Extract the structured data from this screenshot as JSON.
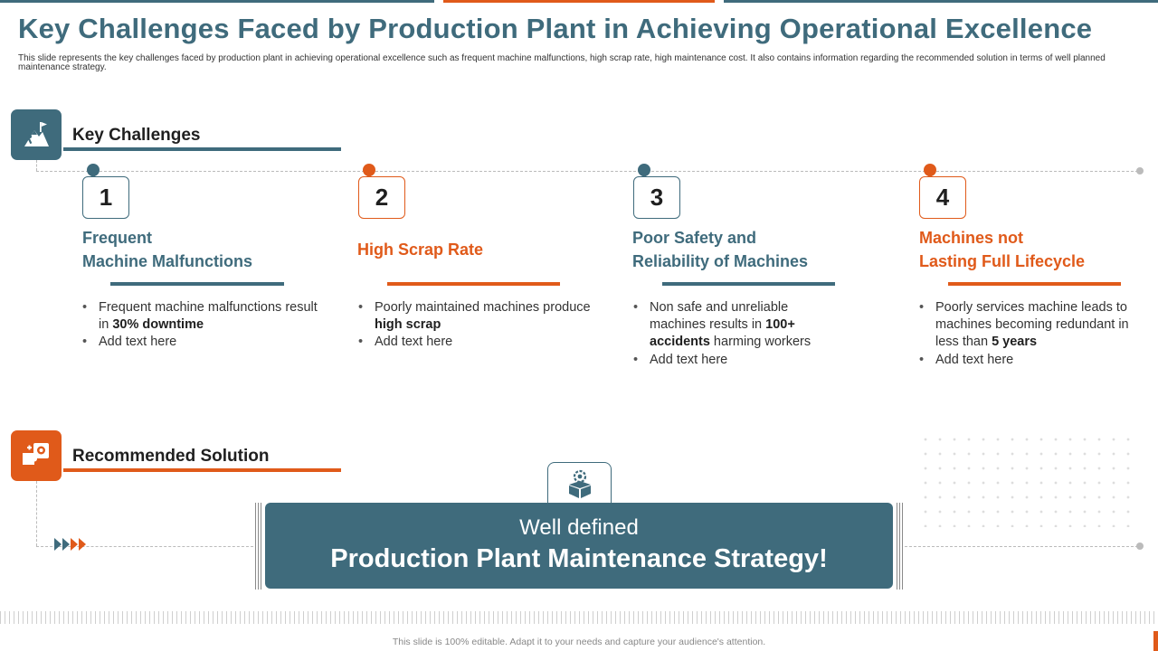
{
  "colors": {
    "teal": "#3f6b7c",
    "orange": "#e05a1a"
  },
  "title": "Key Challenges Faced by Production Plant in Achieving Operational Excellence",
  "subtitle": "This slide represents the key challenges faced by production plant in achieving operational excellence such as frequent machine malfunctions, high scrap rate, high maintenance cost. It also contains information regarding the recommended solution in terms of well planned maintenance strategy.",
  "key_challenges": {
    "heading": "Key Challenges",
    "icon": "mountain-climber-icon",
    "items": [
      {
        "number": "1",
        "title_line1": "Frequent",
        "title_line2": "Machine Malfunctions",
        "bullet1_pre": "Frequent machine malfunctions result in ",
        "bullet1_bold": "30% downtime",
        "bullet1_post": "",
        "bullet2": "Add text here"
      },
      {
        "number": "2",
        "title_line1": "High Scrap Rate",
        "title_line2": "",
        "bullet1_pre": "Poorly maintained machines produce ",
        "bullet1_bold": "high scrap",
        "bullet1_post": "",
        "bullet2": "Add text here"
      },
      {
        "number": "3",
        "title_line1": "Poor Safety and",
        "title_line2": "Reliability of Machines",
        "bullet1_pre": "Non safe and unreliable machines results in ",
        "bullet1_bold": "100+ accidents",
        "bullet1_post": " harming workers",
        "bullet2": "Add text here"
      },
      {
        "number": "4",
        "title_line1": "Machines not",
        "title_line2": "Lasting Full Lifecycle",
        "bullet1_pre": "Poorly services machine leads to machines becoming redundant in less than ",
        "bullet1_bold": "5 years",
        "bullet1_post": "",
        "bullet2": "Add text here"
      }
    ]
  },
  "recommended_solution": {
    "heading": "Recommended Solution",
    "icon": "puzzle-idea-icon",
    "box_icon": "gear-box-icon",
    "line1": "Well defined",
    "line2": "Production Plant Maintenance Strategy!"
  },
  "footer": "This slide is 100% editable. Adapt it to your needs and capture your audience's attention."
}
